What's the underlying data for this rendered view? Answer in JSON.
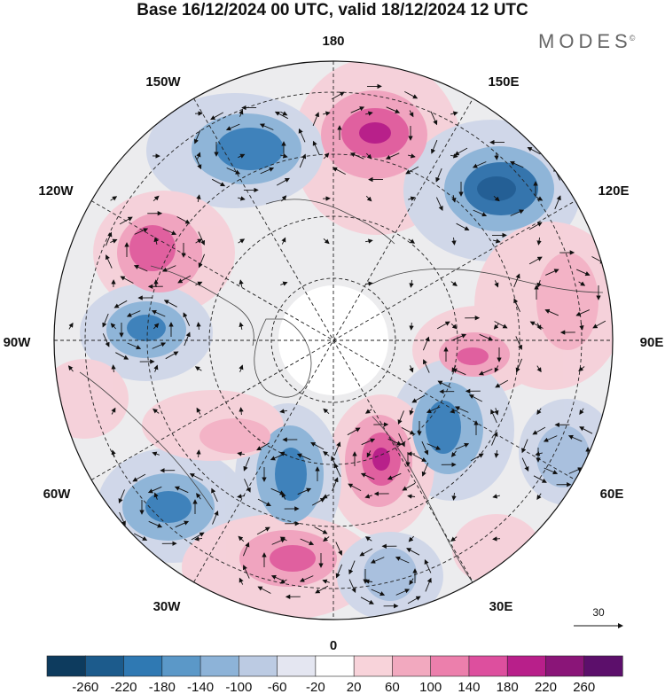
{
  "header": {
    "title": "Base 16/12/2024 00 UTC, valid 18/12/2024 12 UTC",
    "brand": "MODES",
    "brand_mark": "©"
  },
  "map": {
    "projection": "north-polar-stereographic",
    "longitude_labels": {
      "top": "180",
      "top_right": "150E",
      "upper_right": "120E",
      "right": "90E",
      "lower_right": "60E",
      "bottom_right": "30E",
      "bottom": "0",
      "bottom_left": "30W",
      "lower_left": "60W",
      "left": "90W",
      "upper_left": "120W",
      "top_left": "150W"
    },
    "vector_reference": "30",
    "anomaly_colors": {
      "negative_strong": "#2d6aa3",
      "negative_mid": "#6fa3cf",
      "negative_weak": "#c4cfe4",
      "positive_weak": "#f5cdd5",
      "positive_mid": "#ee8bb3",
      "positive_strong": "#c5308f"
    },
    "cells": [
      {
        "sign": "pos",
        "peak": 200,
        "name": "cell-positive-180"
      },
      {
        "sign": "neg",
        "peak": 180,
        "name": "cell-negative-150w"
      },
      {
        "sign": "neg",
        "peak": 220,
        "name": "cell-negative-140e"
      },
      {
        "sign": "pos",
        "peak": 180,
        "name": "cell-positive-115w"
      },
      {
        "sign": "neg",
        "peak": 180,
        "name": "cell-negative-90w"
      },
      {
        "sign": "pos",
        "peak": 140,
        "name": "cell-positive-100e"
      },
      {
        "sign": "pos",
        "peak": 100,
        "name": "cell-positive-85e"
      },
      {
        "sign": "neg",
        "peak": 180,
        "name": "cell-negative-45e"
      },
      {
        "sign": "pos",
        "peak": 200,
        "name": "cell-positive-15e"
      },
      {
        "sign": "neg",
        "peak": 180,
        "name": "cell-negative-30w"
      },
      {
        "sign": "neg",
        "peak": 160,
        "name": "cell-negative-60w"
      },
      {
        "sign": "pos",
        "peak": 180,
        "name": "cell-positive-10w"
      },
      {
        "sign": "neg",
        "peak": 140,
        "name": "cell-negative-30e"
      },
      {
        "sign": "neg",
        "peak": 100,
        "name": "cell-negative-60e"
      },
      {
        "sign": "pos",
        "peak": 100,
        "name": "cell-positive-60w"
      }
    ]
  },
  "colorbar": {
    "labels": [
      "-260",
      "-220",
      "-180",
      "-140",
      "-100",
      "-60",
      "-20",
      "20",
      "60",
      "100",
      "140",
      "180",
      "220",
      "260"
    ],
    "colors": [
      "#0d3b5e",
      "#1c5b8c",
      "#2f79b3",
      "#5b98c8",
      "#8db3d8",
      "#bccbe3",
      "#e4e6f1",
      "#ffffff",
      "#f8d3da",
      "#f2a9bf",
      "#ec7fac",
      "#dd4f9e",
      "#b81f8a",
      "#8a1578",
      "#5c0f6b"
    ]
  }
}
